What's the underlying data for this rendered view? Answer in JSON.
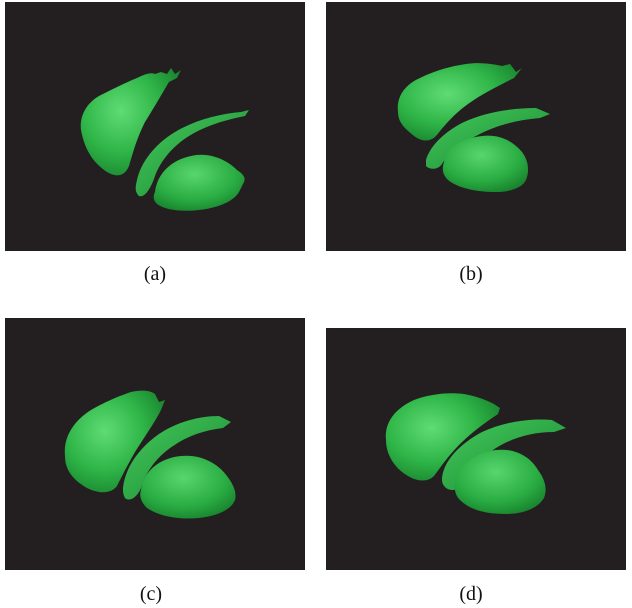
{
  "figure": {
    "colors": {
      "background": "#231f20",
      "surface_dark": "#1f8a34",
      "surface_mid": "#2fb548",
      "surface_light": "#52d36a"
    },
    "panels": [
      {
        "caption": "(a)"
      },
      {
        "caption": "(b)"
      },
      {
        "caption": "(c)"
      },
      {
        "caption": "(d)"
      }
    ]
  }
}
